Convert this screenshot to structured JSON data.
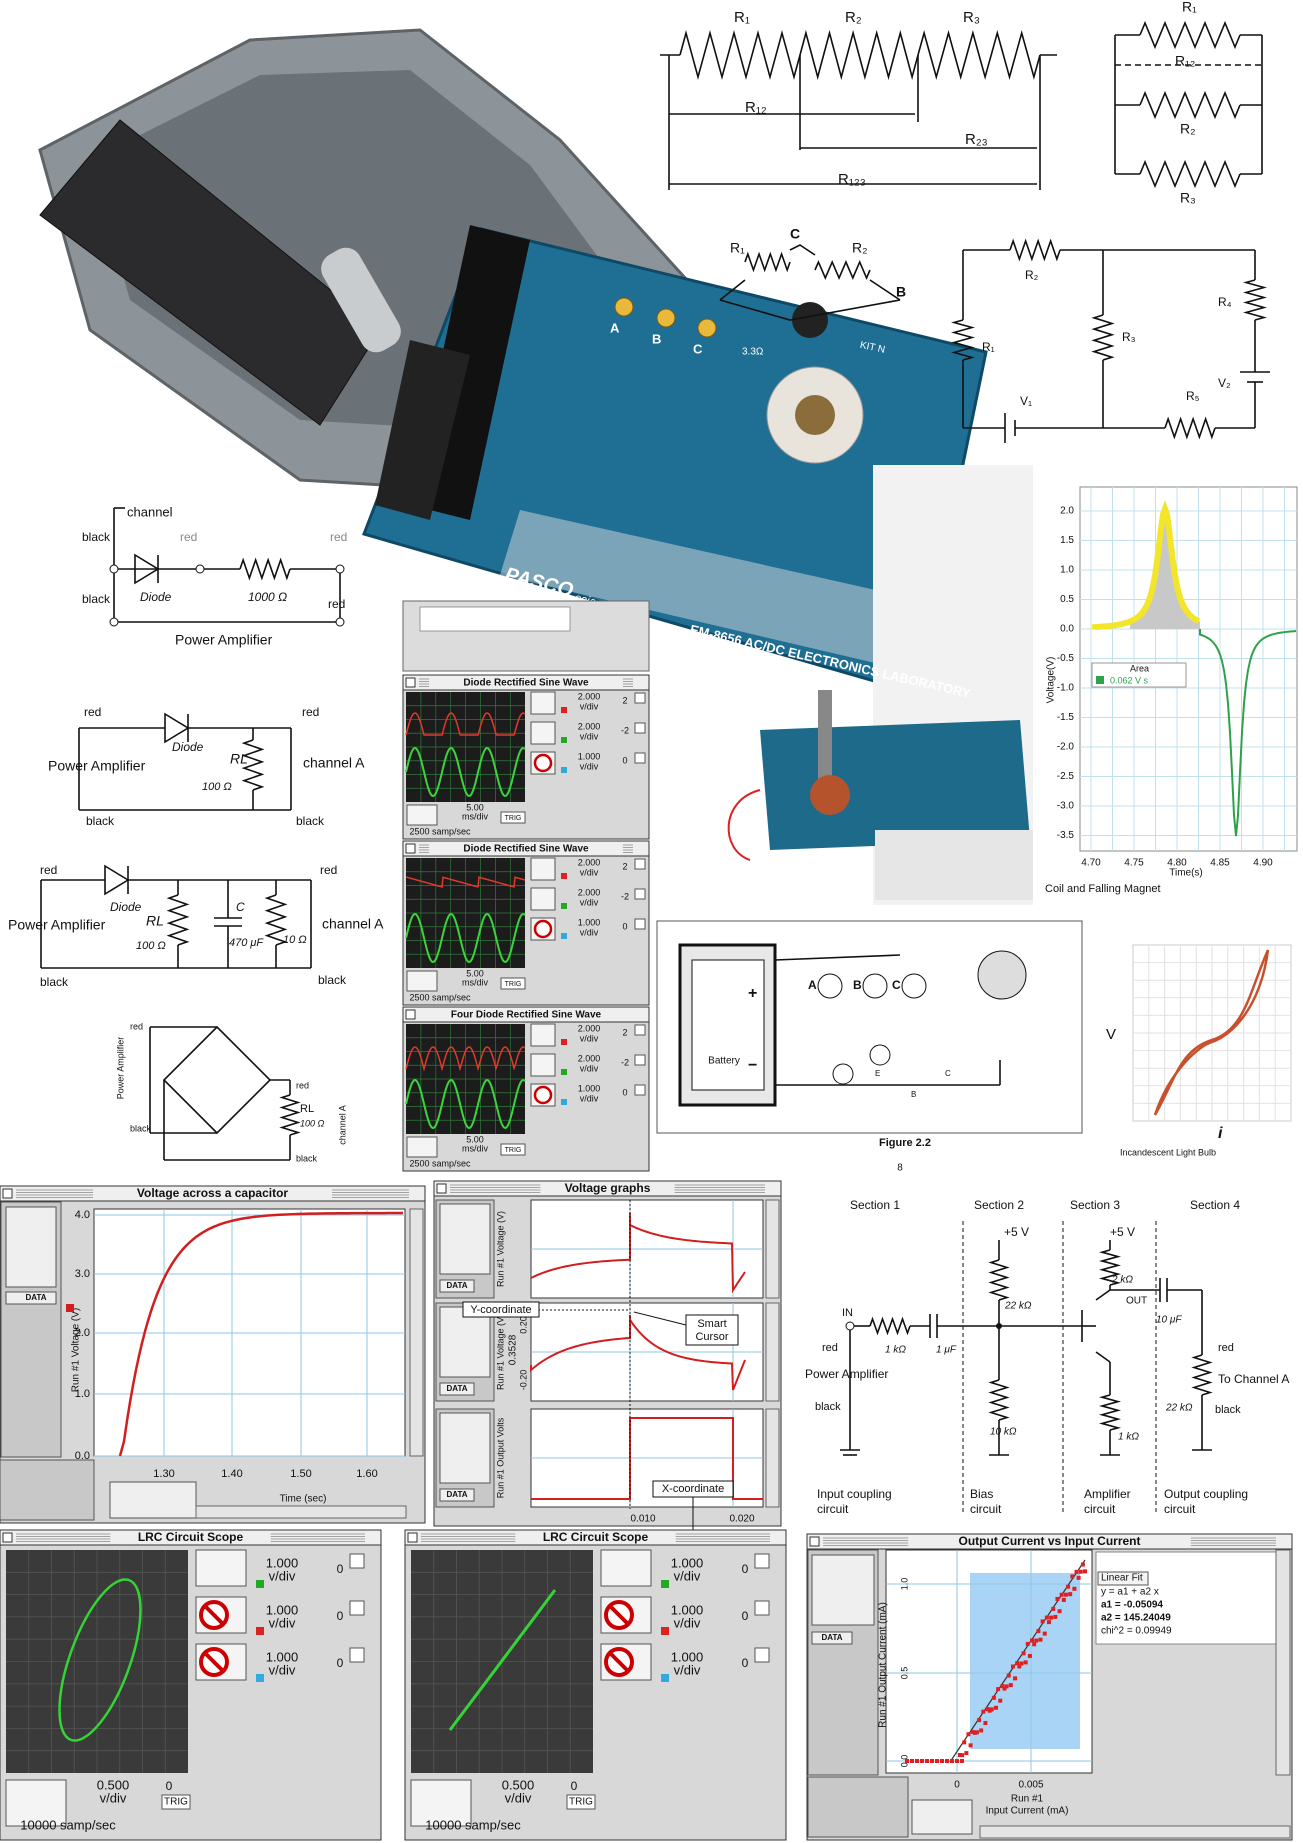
{
  "photo": {
    "bulbs": [
      "A",
      "B",
      "C"
    ],
    "resistor": "3.3Ω",
    "kit": "KIT N",
    "brand": "PASCO",
    "brand_sub": "scientific",
    "model": "EM-8656 AC/DC ELECTRONICS LABORATORY"
  },
  "series_circuit": {
    "r1": "R₁",
    "r2": "R₂",
    "r3": "R₃",
    "r12": "R₁₂",
    "r23": "R₂₃",
    "r123": "R₁₂₃"
  },
  "parallel_circuit": {
    "r1": "R₁",
    "r12": "R₁₂",
    "r2": "R₂",
    "r3": "R₃"
  },
  "delta_circuit": {
    "r1": "R₁",
    "node_c": "C",
    "r2": "R₂",
    "node_b": "B"
  },
  "loop_circuit": {
    "r2": "R₂",
    "r4": "R₄",
    "r3": "R₃",
    "r1": "R₁",
    "v1": "V₁",
    "v2": "V₂",
    "r5": "R₅"
  },
  "coil_graph": {
    "yticks": [
      "2.0",
      "1.5",
      "1.0",
      "0.5",
      "0.0",
      "-0.5",
      "-1.0",
      "-1.5",
      "-2.0",
      "-2.5",
      "-3.0",
      "-3.5"
    ],
    "xticks": [
      "4.70",
      "4.75",
      "4.80",
      "4.85",
      "4.90"
    ],
    "ylabel": "Voltage(V)",
    "xlabel": "Time(s)",
    "area_title": "Area",
    "area_value": "0.062 V s",
    "caption": "Coil and Falling Magnet"
  },
  "diode_circuit": {
    "channel": "channel",
    "black_top": "black",
    "red_mid": "red",
    "red_right": "red",
    "diode": "Diode",
    "resistor": "1000 Ω",
    "black_bottom": "black",
    "red_bottom": "red",
    "source": "Power Amplifier"
  },
  "halfwave_circuit": {
    "red_left": "red",
    "red_right": "red",
    "diode": "Diode",
    "source": "Power Amplifier",
    "rl": "RL",
    "rl_value": "100 Ω",
    "output": "channel A",
    "black_left": "black",
    "black_right": "black"
  },
  "filter_circuit": {
    "red_left": "red",
    "red_right": "red",
    "diode": "Diode",
    "source": "Power Amplifier",
    "rl": "RL",
    "rl_value": "100 Ω",
    "cap": "C",
    "cap_value": "470 μF",
    "r2_value": "10 Ω",
    "output": "channel A",
    "black_left": "black",
    "black_right": "black"
  },
  "bridge_circuit": {
    "red_top": "red",
    "source": "Power Amplifier",
    "black_left": "black",
    "red_right": "red",
    "rl": "RL",
    "rl_value": "100 Ω",
    "output": "channel A",
    "black_right": "black"
  },
  "scopes": [
    {
      "title": "Diode Rectified Sine Wave",
      "channels": [
        {
          "scale": "2.000",
          "unit": "v/div",
          "offset": "2"
        },
        {
          "scale": "2.000",
          "unit": "v/div",
          "offset": "-2"
        },
        {
          "scale": "1.000",
          "unit": "v/div",
          "offset": "0"
        }
      ],
      "time": "5.00",
      "time_unit": "ms/div",
      "rate": "2500 samp/sec",
      "trig": "TRIG"
    },
    {
      "title": "Diode Rectified Sine Wave",
      "channels": [
        {
          "scale": "2.000",
          "unit": "v/div",
          "offset": "2"
        },
        {
          "scale": "2.000",
          "unit": "v/div",
          "offset": "-2"
        },
        {
          "scale": "1.000",
          "unit": "v/div",
          "offset": "0"
        }
      ],
      "time": "5.00",
      "time_unit": "ms/div",
      "rate": "2500 samp/sec",
      "trig": "TRIG"
    },
    {
      "title": "Four Diode Rectified Sine Wave",
      "channels": [
        {
          "scale": "2.000",
          "unit": "v/div",
          "offset": "2"
        },
        {
          "scale": "2.000",
          "unit": "v/div",
          "offset": "-2"
        },
        {
          "scale": "1.000",
          "unit": "v/div",
          "offset": "0"
        }
      ],
      "time": "5.00",
      "time_unit": "ms/div",
      "rate": "2500 samp/sec",
      "trig": "TRIG"
    }
  ],
  "board_figure": {
    "bulbs": [
      "A",
      "B",
      "C"
    ],
    "plus": "+",
    "minus": "−",
    "battery": "Battery",
    "sockets": [
      "E",
      "C",
      "B"
    ],
    "caption": "Figure 2.2",
    "page": "8"
  },
  "bulb_graph": {
    "ylabel": "V",
    "xlabel": "i",
    "caption": "Incandescent Light Bulb"
  },
  "capacitor_window": {
    "title": "Voltage across a capacitor",
    "ylabel": "Run #1 Voltage (V)",
    "yticks": [
      "4.0",
      "3.0",
      "2.0",
      "1.0",
      "0.0"
    ],
    "xticks": [
      "1.30",
      "1.40",
      "1.50",
      "1.60"
    ],
    "xlabel": "Time (sec)",
    "data_button": "DATA"
  },
  "voltage_window": {
    "title": "Voltage graphs",
    "ylabels": [
      "Run #1 Voltage (V)",
      "Run #1 Voltage (V)",
      "Run #1 Output Volts"
    ],
    "cursor_value": "0.3528",
    "yticks": [
      "0.20",
      "-0.20"
    ],
    "xticks": [
      "0.010",
      "0.020"
    ],
    "y_callout": "Y-coordinate",
    "cursor_callout": [
      "Smart",
      "Cursor"
    ],
    "x_callout": "X-coordinate",
    "data_buttons": [
      "DATA",
      "DATA",
      "DATA"
    ]
  },
  "amplifier_circuit": {
    "sections": [
      "Section 1",
      "Section 2",
      "Section 3",
      "Section 4"
    ],
    "in": "IN",
    "red_in": "red",
    "r_in": "1 kΩ",
    "c_in": "1 μF",
    "source": "Power Amplifier",
    "black_in": "black",
    "vcc_bias": "+5 V",
    "r_bias_top": "22 kΩ",
    "r_bias_bottom": "10 kΩ",
    "vcc_amp": "+5 V",
    "r_c": "2 kΩ",
    "out": "OUT",
    "c_out": "10 μF",
    "r_e": "1 kΩ",
    "red_out": "red",
    "to": "To Channel A",
    "r_load": "22 kΩ",
    "black_out": "black",
    "captions": [
      [
        "Input coupling",
        "circuit"
      ],
      [
        "Bias",
        "circuit"
      ],
      [
        "Amplifier",
        "circuit"
      ],
      [
        "Output coupling",
        "circuit"
      ]
    ]
  },
  "lrc_scopes": [
    {
      "title": "LRC Circuit Scope",
      "channels": [
        {
          "scale": "1.000",
          "unit": "v/div",
          "offset": "0"
        },
        {
          "scale": "1.000",
          "unit": "v/div",
          "offset": "0"
        },
        {
          "scale": "1.000",
          "unit": "v/div",
          "offset": "0"
        }
      ],
      "scale": "0.500",
      "unit": "v/div",
      "offset": "0",
      "trig": "TRIG",
      "rate": "10000 samp/sec"
    },
    {
      "title": "LRC Circuit Scope",
      "channels": [
        {
          "scale": "1.000",
          "unit": "v/div",
          "offset": "0"
        },
        {
          "scale": "1.000",
          "unit": "v/div",
          "offset": "0"
        },
        {
          "scale": "1.000",
          "unit": "v/div",
          "offset": "0"
        }
      ],
      "scale": "0.500",
      "unit": "v/div",
      "offset": "0",
      "trig": "TRIG",
      "rate": "10000 samp/sec"
    }
  ],
  "current_window": {
    "title": "Output Current vs Input Current",
    "fit": "Linear Fit",
    "equation": "y = a1 + a2 x",
    "a1": "a1 = -0.05094",
    "a2": "a2 = 145.24049",
    "chi": "chi^2 = 0.09949",
    "yticks": [
      "1.0",
      "0.5",
      "0.0"
    ],
    "xticks": [
      "0",
      "0.005"
    ],
    "ylabel": "Run #1 Output Current (mA)",
    "xlabel_run": "Run #1",
    "xlabel": "Input Current (mA)",
    "data_button": "DATA"
  }
}
